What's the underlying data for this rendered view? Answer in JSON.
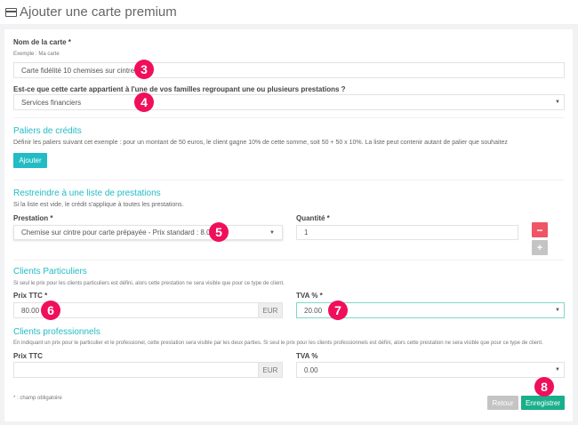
{
  "header": {
    "title": "Ajouter une carte premium",
    "icon": "credit-card-icon"
  },
  "card_name": {
    "label": "Nom de la carte *",
    "hint": "Exemple : Ma carte",
    "value": "Carte fidélité 10 chemises sur cintre"
  },
  "family": {
    "label": "Est-ce que cette carte appartient à l'une de vos familles regroupant une ou plusieurs prestations ?",
    "value": "Services financiers"
  },
  "tiers": {
    "title": "Paliers de crédits",
    "description": "Définir les paliers suivant cet exemple : pour un montant de 50 euros, le client gagne 10% de cette somme, soit 50 + 50 x 10%. La liste peut contenir autant de palier que souhaitez",
    "add_label": "Ajouter"
  },
  "restrict": {
    "title": "Restreindre à une liste de prestations",
    "description": "Si la liste est vide, le crédit s'applique à toutes les prestations.",
    "service_label": "Prestation *",
    "service_value": "Chemise sur cintre pour carte prépayée - Prix standard : 8.00",
    "qty_label": "Quantité *",
    "qty_value": "1",
    "minus": "−",
    "plus": "+"
  },
  "individual": {
    "title": "Clients Particuliers",
    "description": "Si seul le prix pour les clients particuliers est défini, alors cette prestation ne sera visible que pour ce type de client.",
    "price_label": "Prix TTC *",
    "price_value": "80.00",
    "currency": "EUR",
    "vat_label": "TVA % *",
    "vat_value": "20.00"
  },
  "professional": {
    "title": "Clients professionnels",
    "description": "En indiquant un prix pour le particulier et le professionel, cette prestation sera visible par les deux parties. Si seul le prix pour les clients professionnels est défini, alors cette prestation ne sera visible que pour ce type de client.",
    "price_label": "Prix TTC",
    "price_value": "",
    "currency": "EUR",
    "vat_label": "TVA %",
    "vat_value": "0.00"
  },
  "footer": {
    "required_note": "* : champ obligatoire",
    "back_label": "Retour",
    "save_label": "Enregistrer"
  },
  "badges": [
    "3",
    "4",
    "5",
    "6",
    "7",
    "8"
  ],
  "colors": {
    "accent": "#22bcc4",
    "save": "#1aaf8b",
    "danger": "#ef5565",
    "badge": "#ef0f5b"
  }
}
